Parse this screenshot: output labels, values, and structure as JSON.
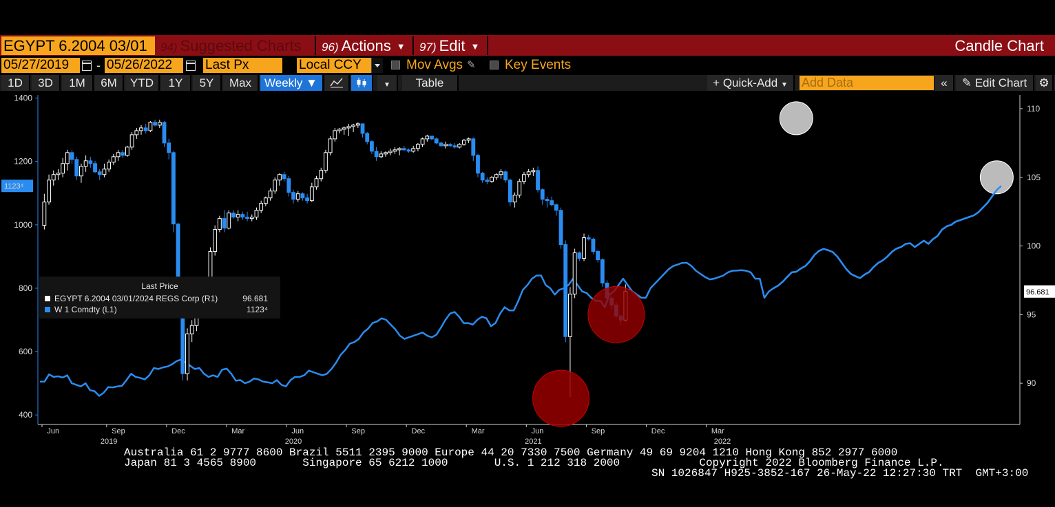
{
  "header": {
    "ticker": "EGYPT 6.2004 03/01",
    "menus": [
      {
        "num": "94)",
        "label": "Suggested Charts",
        "dim": true
      },
      {
        "num": "96)",
        "label": "Actions",
        "caret": true
      },
      {
        "num": "97)",
        "label": "Edit",
        "caret": true
      }
    ],
    "chart_type": "Candle Chart"
  },
  "params": {
    "start_date": "05/27/2019",
    "end_date": "05/26/2022",
    "date_sep": "-",
    "field": "Last Px",
    "currency": "Local CCY",
    "mov_avgs": "Mov Avgs",
    "key_events": "Key Events"
  },
  "toolbar": {
    "periods": [
      "1D",
      "3D",
      "1M",
      "6M",
      "YTD",
      "1Y",
      "5Y",
      "Max"
    ],
    "frequency": "Weekly",
    "table": "Table",
    "quick_add": "Quick-Add",
    "add_data_placeholder": "Add Data",
    "edit_chart": "Edit Chart"
  },
  "legend": {
    "header": "Last Price",
    "rows": [
      {
        "name": "EGYPT 6.2004 03/01/2024 REGS Corp  (R1)",
        "value": "96.681",
        "color": "#ffffff"
      },
      {
        "name": "W 1 Comdty  (L1)",
        "value": "1123⁴",
        "color": "#2a8cf0"
      }
    ]
  },
  "chart_data": {
    "type": "candlestick",
    "series": [
      {
        "name": "EGYPT 6.2004 03/01/2024 REGS Corp (R1)",
        "axis": "right",
        "ylim": [
          87,
          111
        ],
        "last_value": "96.681",
        "candles": [
          [
            101.5,
            103.8,
            101.2,
            103.2
          ],
          [
            103.2,
            105.2,
            103.0,
            104.8
          ],
          [
            104.8,
            105.5,
            104.4,
            105.2
          ],
          [
            105.2,
            105.6,
            104.8,
            105.3
          ],
          [
            105.3,
            106.4,
            105.0,
            106.0
          ],
          [
            106.0,
            107.0,
            105.5,
            106.8
          ],
          [
            106.8,
            107.0,
            106.0,
            106.3
          ],
          [
            106.3,
            106.5,
            104.8,
            105.1
          ],
          [
            105.1,
            106.0,
            104.6,
            105.8
          ],
          [
            105.8,
            106.6,
            105.4,
            106.2
          ],
          [
            106.2,
            106.5,
            105.7,
            106.0
          ],
          [
            106.0,
            106.2,
            105.3,
            105.4
          ],
          [
            105.4,
            105.6,
            104.8,
            105.2
          ],
          [
            105.2,
            106.0,
            105.0,
            105.6
          ],
          [
            105.6,
            106.3,
            105.4,
            106.1
          ],
          [
            106.1,
            106.7,
            105.9,
            106.5
          ],
          [
            106.5,
            107.0,
            106.2,
            106.8
          ],
          [
            106.8,
            107.0,
            106.4,
            106.6
          ],
          [
            106.6,
            107.3,
            106.5,
            107.2
          ],
          [
            107.2,
            108.3,
            107.0,
            108.1
          ],
          [
            108.1,
            108.6,
            107.8,
            108.4
          ],
          [
            108.4,
            108.8,
            108.1,
            108.6
          ],
          [
            108.6,
            108.9,
            108.2,
            108.4
          ],
          [
            108.4,
            109.1,
            108.3,
            109.0
          ],
          [
            109.0,
            109.2,
            108.7,
            108.8
          ],
          [
            108.8,
            109.2,
            108.6,
            109.0
          ],
          [
            109.0,
            109.1,
            107.2,
            107.5
          ],
          [
            107.5,
            107.8,
            106.3,
            106.8
          ],
          [
            106.8,
            106.9,
            101.0,
            101.6
          ],
          [
            101.6,
            101.7,
            97.0,
            97.2
          ],
          [
            97.2,
            97.5,
            90.2,
            90.7
          ],
          [
            90.7,
            94.0,
            90.2,
            93.6
          ],
          [
            93.6,
            94.6,
            93.0,
            94.2
          ],
          [
            94.2,
            96.6,
            93.8,
            96.3
          ],
          [
            96.3,
            96.6,
            95.6,
            95.9
          ],
          [
            95.9,
            97.6,
            95.7,
            97.3
          ],
          [
            97.3,
            99.9,
            97.1,
            99.6
          ],
          [
            99.6,
            101.5,
            99.3,
            101.2
          ],
          [
            101.2,
            102.2,
            101.0,
            102.0
          ],
          [
            102.0,
            102.6,
            101.0,
            101.3
          ],
          [
            101.3,
            102.6,
            101.2,
            102.4
          ],
          [
            102.4,
            102.6,
            102.0,
            102.1
          ],
          [
            102.1,
            102.6,
            101.8,
            102.3
          ],
          [
            102.3,
            102.5,
            101.9,
            102.1
          ],
          [
            102.1,
            102.5,
            101.8,
            102.0
          ],
          [
            102.0,
            102.3,
            101.8,
            102.1
          ],
          [
            102.1,
            102.8,
            101.9,
            102.6
          ],
          [
            102.6,
            103.3,
            102.4,
            103.1
          ],
          [
            103.1,
            103.6,
            102.9,
            103.5
          ],
          [
            103.5,
            104.2,
            103.3,
            104.0
          ],
          [
            104.0,
            105.0,
            103.8,
            104.8
          ],
          [
            104.8,
            105.3,
            104.4,
            105.2
          ],
          [
            105.2,
            105.4,
            104.7,
            104.9
          ],
          [
            104.9,
            105.1,
            103.6,
            103.9
          ],
          [
            103.9,
            104.1,
            103.1,
            103.4
          ],
          [
            103.4,
            104.0,
            103.2,
            103.8
          ],
          [
            103.8,
            103.9,
            103.3,
            103.5
          ],
          [
            103.5,
            103.8,
            103.1,
            103.3
          ],
          [
            103.3,
            104.6,
            103.2,
            104.3
          ],
          [
            104.3,
            105.1,
            104.1,
            104.9
          ],
          [
            104.9,
            105.7,
            104.7,
            105.5
          ],
          [
            105.5,
            107.0,
            105.3,
            106.8
          ],
          [
            106.8,
            108.0,
            106.6,
            107.8
          ],
          [
            107.8,
            108.6,
            107.6,
            108.4
          ],
          [
            108.4,
            108.6,
            108.2,
            108.5
          ],
          [
            108.5,
            108.7,
            108.1,
            108.6
          ],
          [
            108.6,
            108.9,
            108.0,
            108.7
          ],
          [
            108.7,
            108.9,
            108.3,
            108.8
          ],
          [
            108.8,
            109.0,
            108.6,
            108.9
          ],
          [
            108.9,
            108.9,
            107.9,
            108.2
          ],
          [
            108.2,
            108.3,
            107.4,
            107.6
          ],
          [
            107.6,
            107.7,
            106.7,
            106.9
          ],
          [
            106.9,
            107.2,
            106.2,
            106.5
          ],
          [
            106.5,
            106.9,
            106.4,
            106.7
          ],
          [
            106.7,
            106.9,
            106.5,
            106.8
          ],
          [
            106.8,
            107.1,
            106.6,
            106.9
          ],
          [
            106.9,
            107.2,
            106.7,
            107.0
          ],
          [
            107.0,
            107.2,
            106.6,
            107.1
          ],
          [
            107.1,
            107.3,
            106.9,
            107.0
          ],
          [
            107.0,
            107.1,
            106.8,
            106.9
          ],
          [
            106.9,
            107.3,
            106.8,
            107.1
          ],
          [
            107.1,
            107.5,
            106.9,
            107.4
          ],
          [
            107.4,
            107.9,
            107.2,
            107.8
          ],
          [
            107.8,
            108.1,
            107.6,
            108.0
          ],
          [
            108.0,
            108.0,
            107.7,
            107.8
          ],
          [
            107.8,
            107.9,
            107.4,
            107.5
          ],
          [
            107.5,
            107.6,
            107.2,
            107.3
          ],
          [
            107.3,
            107.6,
            107.1,
            107.4
          ],
          [
            107.4,
            107.5,
            107.2,
            107.3
          ],
          [
            107.3,
            107.5,
            107.1,
            107.2
          ],
          [
            107.2,
            107.5,
            107.1,
            107.4
          ],
          [
            107.4,
            107.8,
            107.3,
            107.7
          ],
          [
            107.7,
            107.9,
            107.5,
            107.8
          ],
          [
            107.8,
            107.9,
            106.2,
            106.6
          ],
          [
            106.6,
            106.7,
            105.0,
            105.3
          ],
          [
            105.3,
            105.4,
            104.6,
            104.8
          ],
          [
            104.8,
            105.0,
            104.5,
            104.7
          ],
          [
            104.7,
            105.1,
            104.6,
            105.0
          ],
          [
            105.0,
            105.3,
            104.8,
            105.2
          ],
          [
            105.2,
            105.6,
            104.9,
            105.4
          ],
          [
            105.4,
            105.5,
            104.6,
            104.8
          ],
          [
            104.8,
            104.9,
            102.9,
            103.2
          ],
          [
            103.2,
            103.9,
            102.8,
            103.7
          ],
          [
            103.7,
            104.9,
            103.5,
            104.7
          ],
          [
            104.7,
            105.4,
            104.5,
            105.2
          ],
          [
            105.2,
            105.6,
            105.0,
            105.4
          ],
          [
            105.4,
            105.7,
            105.1,
            105.5
          ],
          [
            105.5,
            105.8,
            103.9,
            104.1
          ],
          [
            104.1,
            104.2,
            103.0,
            103.4
          ],
          [
            103.4,
            103.6,
            102.8,
            103.3
          ],
          [
            103.3,
            103.6,
            102.9,
            103.0
          ],
          [
            103.0,
            103.1,
            102.2,
            102.6
          ],
          [
            102.6,
            102.8,
            99.8,
            100.1
          ],
          [
            100.1,
            100.4,
            93.0,
            93.4
          ],
          [
            93.4,
            97.0,
            89.0,
            96.5
          ],
          [
            96.5,
            99.8,
            96.2,
            99.5
          ],
          [
            99.5,
            99.6,
            98.9,
            99.1
          ],
          [
            99.1,
            100.9,
            98.9,
            100.6
          ],
          [
            100.6,
            100.8,
            100.4,
            100.5
          ],
          [
            100.5,
            100.6,
            99.4,
            99.6
          ],
          [
            99.6,
            99.7,
            98.8,
            99.0
          ],
          [
            99.0,
            99.1,
            97.0,
            97.3
          ],
          [
            97.3,
            97.5,
            95.9,
            96.2
          ],
          [
            96.2,
            96.4,
            95.4,
            95.7
          ],
          [
            95.7,
            95.9,
            94.7,
            94.9
          ],
          [
            94.9,
            95.0,
            94.2,
            94.6
          ],
          [
            94.6,
            97.2,
            94.5,
            96.7
          ]
        ]
      },
      {
        "name": "W 1 Comdty (L1)",
        "axis": "left",
        "ylim": [
          370,
          1410
        ],
        "last_value": "1123⁴",
        "values": [
          505,
          505,
          528,
          520,
          522,
          518,
          525,
          500,
          495,
          490,
          500,
          478,
          475,
          460,
          470,
          488,
          487,
          490,
          492,
          510,
          530,
          520,
          517,
          512,
          525,
          548,
          545,
          550,
          553,
          560,
          570,
          575,
          565,
          555,
          545,
          548,
          530,
          520,
          525,
          520,
          543,
          546,
          530,
          508,
          510,
          500,
          505,
          515,
          512,
          505,
          503,
          500,
          510,
          495,
          490,
          510,
          520,
          520,
          525,
          540,
          535,
          530,
          525,
          530,
          545,
          565,
          590,
          605,
          625,
          630,
          640,
          660,
          672,
          690,
          695,
          705,
          700,
          685,
          670,
          650,
          640,
          645,
          650,
          655,
          660,
          650,
          645,
          653,
          675,
          700,
          720,
          725,
          710,
          690,
          690,
          685,
          700,
          710,
          705,
          680,
          690,
          720,
          740,
          730,
          730,
          760,
          795,
          810,
          830,
          840,
          840,
          810,
          800,
          780,
          795,
          800,
          810,
          830,
          810,
          790,
          785,
          770,
          760,
          760,
          740,
          780,
          790,
          810,
          830,
          810,
          790,
          780,
          770,
          770,
          800,
          815,
          830,
          845,
          860,
          870,
          875,
          880,
          880,
          870,
          855,
          845,
          835,
          828,
          830,
          835,
          840,
          850,
          855,
          856,
          857,
          855,
          850,
          830,
          830,
          770,
          790,
          800,
          808,
          820,
          835,
          850,
          852,
          862,
          870,
          885,
          905,
          918,
          924,
          920,
          914,
          900,
          880,
          860,
          845,
          838,
          832,
          843,
          851,
          867,
          880,
          888,
          900,
          915,
          925,
          930,
          940,
          942,
          930,
          940,
          950,
          940,
          955,
          965,
          985,
          995,
          1000,
          1010,
          1015,
          1020,
          1025,
          1030,
          1040,
          1055,
          1070,
          1090,
          1110,
          1123
        ]
      }
    ],
    "left_ticks": [
      400,
      600,
      800,
      1000,
      1200,
      1400
    ],
    "right_ticks": [
      90,
      95,
      100,
      105,
      110
    ],
    "x_labels": [
      {
        "label": "Jun",
        "week": 0
      },
      {
        "label": "Sep",
        "week": 14
      },
      {
        "label": "Dec",
        "week": 27
      },
      {
        "label": "Mar",
        "week": 40
      },
      {
        "label": "Jun",
        "week": 53
      },
      {
        "label": "Sep",
        "week": 66
      },
      {
        "label": "Dec",
        "week": 79
      },
      {
        "label": "Mar",
        "week": 92
      },
      {
        "label": "Jun",
        "week": 105
      },
      {
        "label": "Sep",
        "week": 118
      },
      {
        "label": "Dec",
        "week": 131
      },
      {
        "label": "Mar",
        "week": 144
      }
    ],
    "year_labels": [
      {
        "label": "2019",
        "week": 14
      },
      {
        "label": "2020",
        "week": 54
      },
      {
        "label": "2021",
        "week": 106
      },
      {
        "label": "2022",
        "week": 147
      }
    ],
    "left_flag": "1123⁴",
    "right_flag": "96.681"
  },
  "footer": {
    "line1": "Australia 61 2 9777 8600 Brazil 5511 2395 9000 Europe 44 20 7330 7500 Germany 49 69 9204 1210 Hong Kong 852 2977 6000",
    "line2": "Japan 81 3 4565 8900       Singapore 65 6212 1000       U.S. 1 212 318 2000            Copyright 2022 Bloomberg Finance L.P.",
    "line3": "SN 1026847 H925-3852-167 26-May-22 12:27:30 TRT  GMT+3:00"
  },
  "colors": {
    "title_bar": "#8b0e14",
    "orange": "#f7a51c",
    "up_candle": "#ffffff",
    "down_candle": "#2a8cf0",
    "line_series": "#2a8cf0",
    "highlight_gray": "#bfbfbf",
    "highlight_red": "#8b0000"
  }
}
